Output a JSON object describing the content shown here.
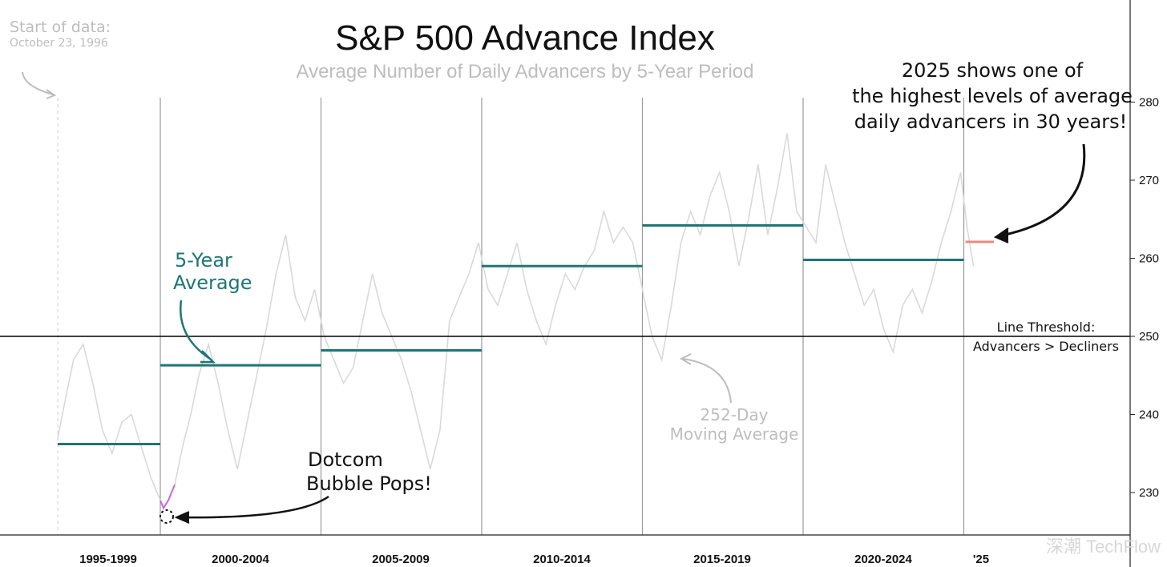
{
  "chart_data": {
    "type": "line",
    "title": "S&P 500 Advance Index",
    "subtitle": "Average Number of Daily Advancers by 5-Year Period",
    "xlabel": "",
    "ylabel": "",
    "ylim": [
      225,
      285
    ],
    "yticks": [
      230,
      240,
      250,
      260,
      270,
      280
    ],
    "threshold": 250,
    "categories": [
      "1995-1999",
      "2000-2004",
      "2005-2009",
      "2010-2014",
      "2015-2019",
      "2020-2024",
      "'25"
    ],
    "series": [
      {
        "name": "5-Year Average",
        "values": [
          236.2,
          246.3,
          248.2,
          259.0,
          264.2,
          259.8,
          262.1
        ]
      },
      {
        "name": "252-Day Moving Average",
        "x": [
          1996.81,
          1997.0,
          1997.3,
          1997.6,
          1997.9,
          1998.2,
          1998.5,
          1998.8,
          1999.1,
          1999.4,
          1999.7,
          2000.0,
          2000.1,
          2000.25,
          2000.45,
          2000.7,
          2000.95,
          2001.2,
          2001.5,
          2001.8,
          2002.1,
          2002.4,
          2002.7,
          2003.0,
          2003.3,
          2003.6,
          2003.9,
          2004.2,
          2004.5,
          2004.8,
          2005.1,
          2005.4,
          2005.7,
          2006.0,
          2006.3,
          2006.6,
          2006.9,
          2007.2,
          2007.5,
          2007.8,
          2008.1,
          2008.4,
          2008.7,
          2009.0,
          2009.3,
          2009.6,
          2009.9,
          2010.2,
          2010.5,
          2010.8,
          2011.1,
          2011.4,
          2011.7,
          2012.0,
          2012.3,
          2012.6,
          2012.9,
          2013.2,
          2013.5,
          2013.8,
          2014.1,
          2014.4,
          2014.7,
          2015.0,
          2015.3,
          2015.6,
          2015.9,
          2016.2,
          2016.5,
          2016.8,
          2017.1,
          2017.4,
          2017.7,
          2018.0,
          2018.3,
          2018.6,
          2018.9,
          2019.2,
          2019.5,
          2019.8,
          2020.1,
          2020.4,
          2020.7,
          2021.0,
          2021.3,
          2021.6,
          2021.9,
          2022.2,
          2022.5,
          2022.8,
          2023.1,
          2023.4,
          2023.7,
          2024.0,
          2024.3,
          2024.6,
          2024.9,
          2025.1,
          2025.3
        ],
        "values": [
          237,
          241,
          247,
          249,
          244,
          238,
          235,
          239,
          240,
          236,
          232,
          229,
          228,
          229,
          231,
          236,
          240,
          245,
          249,
          244,
          238,
          233,
          239,
          245,
          251,
          258,
          263,
          255,
          252,
          256,
          250,
          247,
          244,
          246,
          252,
          258,
          253,
          250,
          247,
          243,
          238,
          233,
          238,
          252,
          255,
          258,
          262,
          256,
          254,
          258,
          262,
          256,
          252,
          249,
          254,
          258,
          256,
          259,
          261,
          266,
          262,
          264,
          262,
          256,
          250,
          247,
          254,
          262,
          266,
          263,
          268,
          271,
          266,
          259,
          265,
          272,
          263,
          269,
          276,
          266,
          264,
          262,
          272,
          267,
          262,
          258,
          254,
          256,
          251,
          248,
          254,
          256,
          253,
          257,
          262,
          266,
          271,
          264,
          259
        ]
      }
    ],
    "annotations": {
      "start": [
        "Start of data:",
        "October 23, 1996"
      ],
      "five_year": [
        "5-Year",
        "Average"
      ],
      "dotcom": [
        "Dotcom",
        "Bubble Pops!"
      ],
      "ma": [
        "252-Day",
        "Moving Average"
      ],
      "highlight": [
        "2025 shows one of",
        "the highest levels of average",
        "daily advancers in 30 years!"
      ],
      "threshold": [
        "Line Threshold:",
        "Advancers > Decliners"
      ]
    }
  },
  "colors": {
    "avg": "#1f7676",
    "avg_2025": "#e88a80",
    "ma": "#d9d9d9",
    "dotcom": "#cc66dd",
    "divider": "#9a9a9a"
  },
  "watermark": "深潮 TechFlow"
}
